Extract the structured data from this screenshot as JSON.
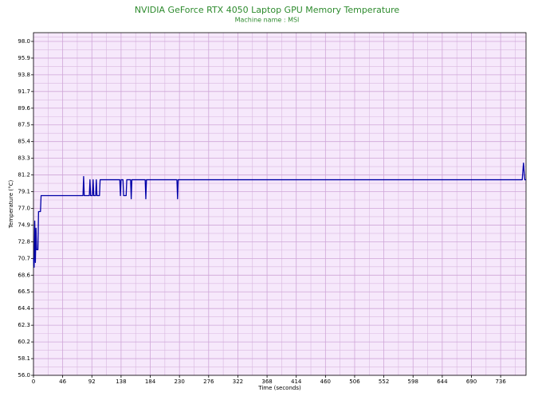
{
  "chart_data": {
    "type": "line",
    "title": "NVIDIA GeForce RTX 4050 Laptop GPU Memory Temperature",
    "subtitle": "Machine name : MSI",
    "x_label": "Time (seconds)",
    "y_label": "Temperature (°C)",
    "xlim": [
      0,
      776
    ],
    "xticks": [
      0,
      46,
      92,
      138,
      184,
      230,
      276,
      322,
      368,
      414,
      460,
      506,
      552,
      598,
      644,
      690,
      736
    ],
    "ylim": [
      56,
      99.1
    ],
    "yticks": [
      {
        "value": 56,
        "label": "56.0"
      },
      58.1,
      60.2,
      62.3,
      64.4,
      66.5,
      68.6,
      70.7,
      72.8,
      74.9,
      {
        "value": 77,
        "label": "77.0"
      },
      79.1,
      81.2,
      83.3,
      85.4,
      87.5,
      89.6,
      91.7,
      93.8,
      95.9,
      {
        "value": 98,
        "label": "98.0"
      }
    ],
    "grid": true,
    "x": [
      0,
      1,
      2,
      3,
      4,
      5,
      7,
      8,
      11,
      12,
      78,
      79,
      80,
      88,
      89,
      90,
      93,
      94,
      95,
      98,
      99,
      100,
      104,
      105,
      136,
      137,
      138,
      141,
      142,
      146,
      147,
      153,
      154,
      155,
      176,
      177,
      178,
      226,
      227,
      228,
      770,
      772,
      774,
      776
    ],
    "series": [
      {
        "color": "#0000a8",
        "values": [
          70.7,
          69.6,
          75.4,
          70.2,
          74.5,
          71.8,
          71.8,
          76.6,
          76.6,
          78.6,
          78.6,
          81.0,
          78.6,
          78.6,
          80.6,
          78.6,
          78.6,
          80.6,
          78.6,
          78.6,
          80.6,
          78.6,
          78.6,
          80.6,
          80.6,
          78.6,
          80.6,
          80.6,
          78.6,
          78.6,
          80.6,
          80.6,
          78.2,
          80.6,
          80.6,
          78.2,
          80.6,
          80.6,
          78.2,
          80.6,
          80.6,
          82.7,
          80.6,
          80.6
        ]
      }
    ]
  }
}
